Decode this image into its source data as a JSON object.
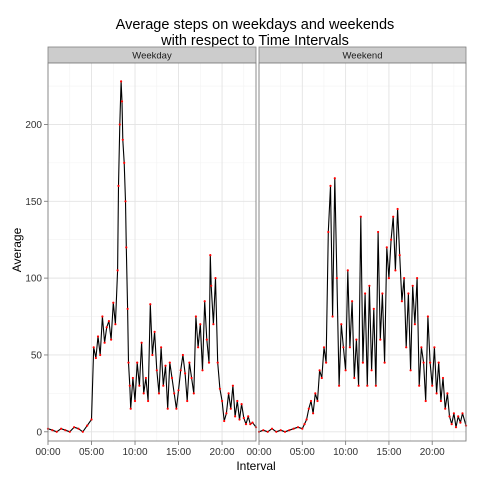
{
  "chart_data": {
    "type": "line",
    "title_line1": "Average steps on weekdays and weekends",
    "title_line2": "with respect to Time Intervals",
    "xlabel": "Interval",
    "ylabel": "Average",
    "x_ticks": [
      "00:00",
      "05:00",
      "10:00",
      "15:00",
      "20:00"
    ],
    "x_tick_hours": [
      0,
      5,
      10,
      15,
      20
    ],
    "xlim_hours": [
      0,
      23.9
    ],
    "y_ticks": [
      0,
      50,
      100,
      150,
      200
    ],
    "ylim": [
      -6,
      240
    ],
    "grid": true,
    "line_color": "#000000",
    "point_color": "#ff0000",
    "panels": [
      {
        "name": "Weekday",
        "series": {
          "hours": [
            0,
            0.5,
            1,
            1.5,
            2,
            2.5,
            3,
            3.5,
            4,
            4.5,
            5,
            5.25,
            5.5,
            5.75,
            6,
            6.25,
            6.5,
            6.75,
            7,
            7.25,
            7.5,
            7.75,
            8,
            8.1,
            8.25,
            8.4,
            8.5,
            8.6,
            8.75,
            8.9,
            9,
            9.15,
            9.25,
            9.4,
            9.5,
            9.75,
            10,
            10.25,
            10.5,
            10.75,
            11,
            11.25,
            11.5,
            11.75,
            12,
            12.25,
            12.5,
            12.75,
            13,
            13.25,
            13.5,
            13.75,
            14,
            14.25,
            14.5,
            14.75,
            15,
            15.25,
            15.5,
            15.75,
            16,
            16.25,
            16.5,
            16.75,
            17,
            17.25,
            17.5,
            17.75,
            18,
            18.25,
            18.5,
            18.65,
            18.75,
            19,
            19.25,
            19.5,
            19.75,
            20,
            20.25,
            20.5,
            20.75,
            21,
            21.25,
            21.5,
            21.75,
            22,
            22.25,
            22.5,
            22.75,
            23,
            23.25,
            23.5,
            23.9
          ],
          "values": [
            2,
            1,
            0,
            2,
            1,
            0,
            3,
            2,
            0,
            4,
            8,
            55,
            48,
            62,
            50,
            75,
            58,
            68,
            72,
            60,
            84,
            70,
            105,
            160,
            200,
            228,
            215,
            190,
            175,
            150,
            120,
            80,
            45,
            30,
            15,
            35,
            20,
            45,
            30,
            58,
            25,
            35,
            20,
            83,
            50,
            65,
            40,
            25,
            55,
            30,
            43,
            15,
            45,
            35,
            25,
            15,
            27,
            40,
            50,
            38,
            20,
            45,
            35,
            25,
            75,
            55,
            70,
            40,
            85,
            60,
            45,
            115,
            95,
            70,
            100,
            45,
            28,
            20,
            7,
            12,
            25,
            15,
            30,
            10,
            20,
            8,
            18,
            9,
            5,
            10,
            5,
            6,
            3
          ]
        }
      },
      {
        "name": "Weekend",
        "series": {
          "hours": [
            0,
            0.5,
            1,
            1.5,
            2,
            2.5,
            3,
            3.5,
            4,
            4.5,
            5,
            5.25,
            5.5,
            5.75,
            6,
            6.25,
            6.5,
            6.75,
            7,
            7.25,
            7.5,
            7.75,
            8,
            8.25,
            8.5,
            8.75,
            9,
            9.25,
            9.5,
            9.75,
            10,
            10.25,
            10.5,
            10.75,
            11,
            11.25,
            11.5,
            11.75,
            12,
            12.25,
            12.5,
            12.75,
            13,
            13.25,
            13.5,
            13.75,
            14,
            14.25,
            14.5,
            14.75,
            15,
            15.25,
            15.5,
            15.75,
            16,
            16.25,
            16.5,
            16.75,
            17,
            17.25,
            17.5,
            17.75,
            18,
            18.25,
            18.5,
            18.75,
            19,
            19.25,
            19.5,
            19.75,
            20,
            20.25,
            20.5,
            20.75,
            21,
            21.25,
            21.5,
            21.75,
            22,
            22.25,
            22.5,
            22.75,
            23,
            23.25,
            23.5,
            23.9
          ],
          "values": [
            0,
            1,
            0,
            2,
            0,
            1,
            0,
            1,
            2,
            3,
            2,
            5,
            8,
            15,
            20,
            12,
            25,
            20,
            40,
            35,
            55,
            45,
            130,
            160,
            75,
            165,
            100,
            30,
            70,
            55,
            40,
            105,
            55,
            85,
            35,
            60,
            30,
            140,
            45,
            90,
            30,
            95,
            40,
            80,
            30,
            130,
            60,
            90,
            45,
            120,
            100,
            125,
            140,
            105,
            145,
            115,
            85,
            100,
            55,
            90,
            40,
            95,
            70,
            100,
            30,
            55,
            45,
            20,
            75,
            45,
            30,
            55,
            25,
            45,
            20,
            35,
            15,
            25,
            10,
            5,
            12,
            3,
            10,
            6,
            12,
            4
          ]
        }
      }
    ]
  }
}
